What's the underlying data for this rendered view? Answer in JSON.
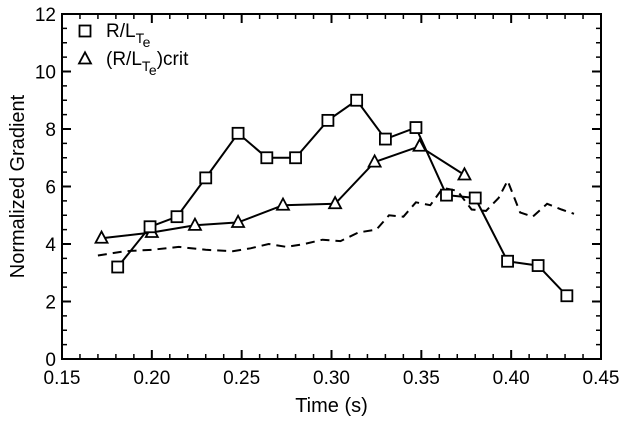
{
  "chart_data": {
    "type": "line",
    "xlabel": "Time (s)",
    "ylabel": "Normalized Gradient",
    "xlim": [
      0.15,
      0.45
    ],
    "ylim": [
      0,
      12
    ],
    "xticks": [
      "0.15",
      "0.20",
      "0.25",
      "0.30",
      "0.35",
      "0.40",
      "0.45"
    ],
    "yticks": [
      "0",
      "2",
      "4",
      "6",
      "8",
      "10",
      "12"
    ],
    "grid": false,
    "legend_position": "top-left",
    "series": [
      {
        "name_parts": {
          "main": "R/L",
          "sub": "T",
          "subsub": "e",
          "suffix": ""
        },
        "marker": "square",
        "line": "solid",
        "x": [
          0.181,
          0.199,
          0.214,
          0.23,
          0.248,
          0.264,
          0.28,
          0.298,
          0.314,
          0.33,
          0.347,
          0.364,
          0.38,
          0.398,
          0.415,
          0.431
        ],
        "y": [
          3.2,
          4.6,
          4.95,
          6.3,
          7.85,
          7.0,
          7.0,
          8.3,
          9.0,
          7.65,
          8.05,
          5.7,
          5.6,
          3.4,
          3.25,
          2.2
        ]
      },
      {
        "name_parts": {
          "main": "(R/L",
          "sub": "T",
          "subsub": "e",
          "suffix": ")crit"
        },
        "marker": "triangle",
        "line": "solid",
        "x": [
          0.172,
          0.2,
          0.224,
          0.248,
          0.273,
          0.302,
          0.324,
          0.349,
          0.374
        ],
        "y": [
          4.2,
          4.4,
          4.65,
          4.75,
          5.35,
          5.4,
          6.85,
          7.4,
          6.4
        ]
      },
      {
        "name_parts": null,
        "marker": "none",
        "line": "dashed",
        "x": [
          0.17,
          0.185,
          0.2,
          0.215,
          0.23,
          0.245,
          0.255,
          0.265,
          0.275,
          0.285,
          0.295,
          0.305,
          0.315,
          0.325,
          0.332,
          0.34,
          0.347,
          0.355,
          0.362,
          0.37,
          0.378,
          0.386,
          0.393,
          0.398,
          0.405,
          0.412,
          0.42,
          0.428,
          0.435
        ],
        "y": [
          3.6,
          3.75,
          3.8,
          3.9,
          3.8,
          3.75,
          3.85,
          4.0,
          3.9,
          4.0,
          4.15,
          4.1,
          4.4,
          4.5,
          5.0,
          4.95,
          5.45,
          5.35,
          5.95,
          5.85,
          5.2,
          5.15,
          5.6,
          6.2,
          5.1,
          4.95,
          5.4,
          5.2,
          5.05
        ]
      }
    ]
  }
}
